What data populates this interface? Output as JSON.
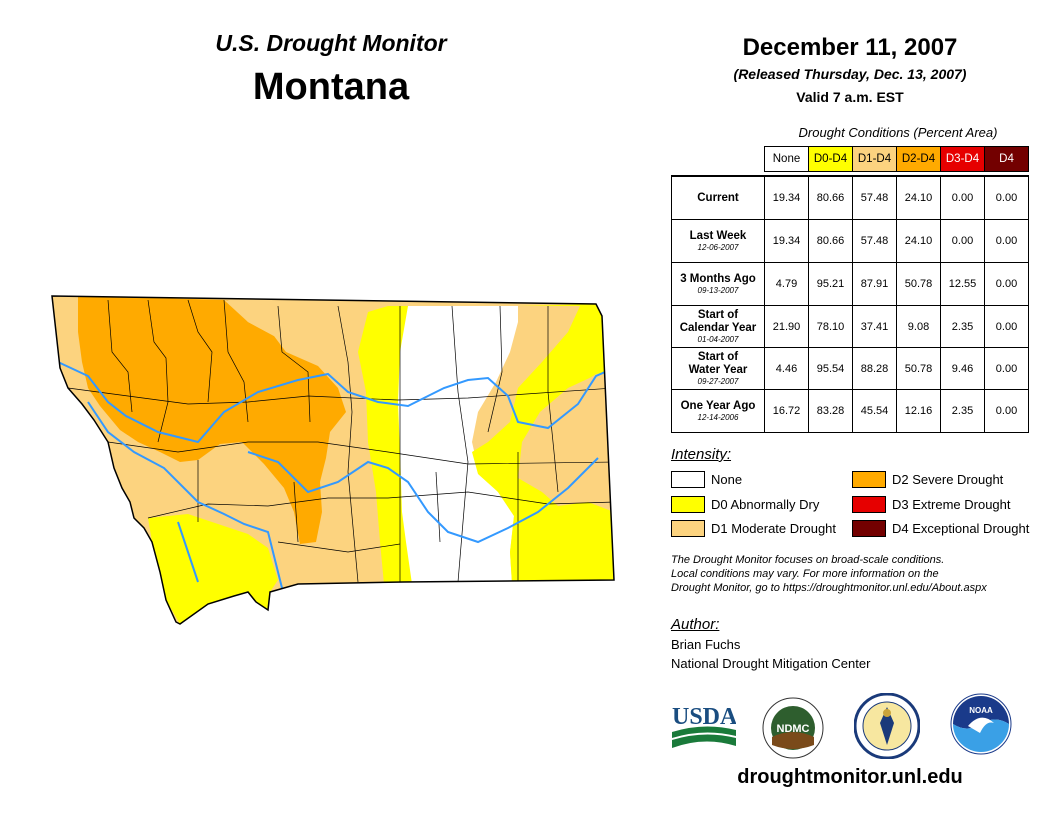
{
  "header": {
    "subtitle": "U.S. Drought Monitor",
    "state": "Montana"
  },
  "date_block": {
    "date": "December 11, 2007",
    "released": "(Released Thursday, Dec. 13, 2007)",
    "valid": "Valid 7 a.m. EST"
  },
  "table": {
    "caption": "Drought Conditions (Percent Area)",
    "columns": [
      {
        "label": "None",
        "color": "#ffffff",
        "text_color": "#000000"
      },
      {
        "label": "D0-D4",
        "color": "#ffff00",
        "text_color": "#000000"
      },
      {
        "label": "D1-D4",
        "color": "#fcd37f",
        "text_color": "#000000"
      },
      {
        "label": "D2-D4",
        "color": "#ffaa00",
        "text_color": "#000000"
      },
      {
        "label": "D3-D4",
        "color": "#e60000",
        "text_color": "#ffffff"
      },
      {
        "label": "D4",
        "color": "#730000",
        "text_color": "#ffffff"
      }
    ],
    "rows": [
      {
        "label1": "Current",
        "label2": "",
        "date": "",
        "values": [
          "19.34",
          "80.66",
          "57.48",
          "24.10",
          "0.00",
          "0.00"
        ]
      },
      {
        "label1": "Last Week",
        "label2": "",
        "date": "12-06-2007",
        "values": [
          "19.34",
          "80.66",
          "57.48",
          "24.10",
          "0.00",
          "0.00"
        ]
      },
      {
        "label1": "3 Months Ago",
        "label2": "",
        "date": "09-13-2007",
        "values": [
          "4.79",
          "95.21",
          "87.91",
          "50.78",
          "12.55",
          "0.00"
        ]
      },
      {
        "label1": "Start of",
        "label2": "Calendar Year",
        "date": "01-04-2007",
        "values": [
          "21.90",
          "78.10",
          "37.41",
          "9.08",
          "2.35",
          "0.00"
        ]
      },
      {
        "label1": "Start of",
        "label2": "Water Year",
        "date": "09-27-2007",
        "values": [
          "4.46",
          "95.54",
          "88.28",
          "50.78",
          "9.46",
          "0.00"
        ]
      },
      {
        "label1": "One Year Ago",
        "label2": "",
        "date": "12-14-2006",
        "values": [
          "16.72",
          "83.28",
          "45.54",
          "12.16",
          "2.35",
          "0.00"
        ]
      }
    ]
  },
  "legend": {
    "title": "Intensity:",
    "items": [
      {
        "label": "None",
        "color": "#ffffff"
      },
      {
        "label": "D0 Abnormally Dry",
        "color": "#ffff00"
      },
      {
        "label": "D1 Moderate Drought",
        "color": "#fcd37f"
      },
      {
        "label": "D2 Severe Drought",
        "color": "#ffaa00"
      },
      {
        "label": "D3 Extreme Drought",
        "color": "#e60000"
      },
      {
        "label": "D4 Exceptional Drought",
        "color": "#730000"
      }
    ]
  },
  "note": {
    "line1": "The Drought Monitor focuses on broad-scale conditions.",
    "line2": "Local conditions may vary. For more information on the",
    "line3": "Drought Monitor, go to https://droughtmonitor.unl.edu/About.aspx"
  },
  "author": {
    "title": "Author:",
    "name": "Brian Fuchs",
    "org": "National Drought Mitigation Center"
  },
  "logos": {
    "usda": "USDA",
    "ndmc": "NDMC",
    "noaa": "NOAA"
  },
  "footer": {
    "website": "droughtmonitor.unl.edu"
  },
  "map_colors": {
    "d0": "#ffff00",
    "d1": "#fcd37f",
    "d2": "#ffaa00",
    "none": "#ffffff",
    "river": "#3399ff",
    "county_line": "#000000"
  }
}
